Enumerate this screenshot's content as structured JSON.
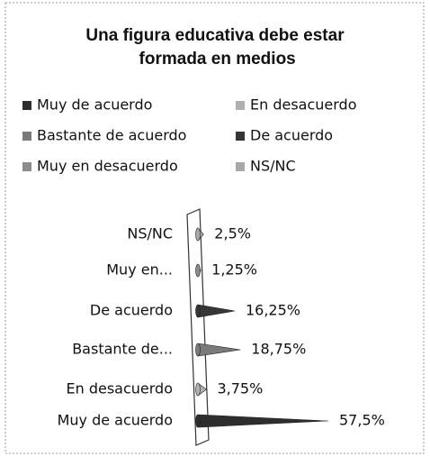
{
  "chart_data": {
    "type": "cone-bar",
    "title": "Una figura educativa debe estar formada en medios",
    "categories": [
      "Muy de acuerdo",
      "En desacuerdo",
      "Bastante de acuerdo",
      "De acuerdo",
      "Muy en desacuerdo",
      "NS/NC"
    ],
    "category_labels": [
      "Muy de acuerdo",
      "En desacuerdo",
      "Bastante de...",
      "De acuerdo",
      "Muy en...",
      "NS/NC"
    ],
    "values": [
      57.5,
      3.75,
      18.75,
      16.25,
      1.25,
      2.5
    ],
    "value_labels": [
      "57,5%",
      "3,75%",
      "18,75%",
      "16,25%",
      "1,25%",
      "2,5%"
    ],
    "colors": [
      "#2e2e2e",
      "#b0b0b0",
      "#7a7a7a",
      "#363636",
      "#8c8c8c",
      "#a8a8a8"
    ],
    "legend": "top"
  }
}
